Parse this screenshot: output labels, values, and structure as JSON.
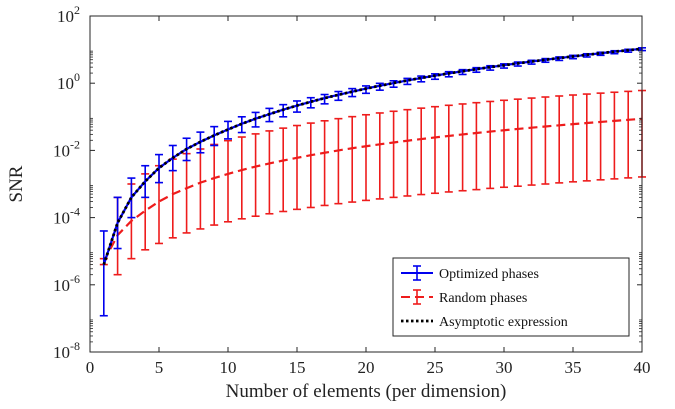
{
  "chart_data": {
    "type": "line",
    "xlabel": "Number of elements (per dimension)",
    "ylabel": "SNR",
    "xlim": [
      0,
      40
    ],
    "ylim_exponent": [
      -8,
      2
    ],
    "yscale": "log",
    "x_ticks": [
      0,
      5,
      10,
      15,
      20,
      25,
      30,
      35,
      40
    ],
    "y_tick_exponents": [
      -8,
      -6,
      -4,
      -2,
      0,
      2
    ],
    "grid": false,
    "legend_position": "bottom-right",
    "x": [
      1,
      2,
      3,
      4,
      5,
      6,
      7,
      8,
      9,
      10,
      11,
      12,
      13,
      14,
      15,
      16,
      17,
      18,
      19,
      20,
      21,
      22,
      23,
      24,
      25,
      26,
      27,
      28,
      29,
      30,
      31,
      32,
      33,
      34,
      35,
      36,
      37,
      38,
      39,
      40
    ],
    "series": [
      {
        "name": "Optimized phases",
        "style": "solid",
        "color": "#0000ee",
        "errorbars": true,
        "values": [
          4e-06,
          7e-05,
          0.0004,
          0.0012,
          0.003,
          0.006,
          0.011,
          0.018,
          0.028,
          0.042,
          0.062,
          0.088,
          0.12,
          0.163,
          0.216,
          0.28,
          0.36,
          0.45,
          0.56,
          0.69,
          0.84,
          1.01,
          1.21,
          1.43,
          1.68,
          1.96,
          2.27,
          2.62,
          3.01,
          3.43,
          3.9,
          4.42,
          4.98,
          5.6,
          6.27,
          7.0,
          7.8,
          8.67,
          9.6,
          10.6
        ],
        "lower": [
          1.2e-07,
          1.2e-05,
          0.0001,
          0.0004,
          0.0011,
          0.0025,
          0.005,
          0.0085,
          0.014,
          0.022,
          0.034,
          0.05,
          0.072,
          0.1,
          0.138,
          0.185,
          0.243,
          0.31,
          0.4,
          0.5,
          0.62,
          0.76,
          0.92,
          1.1,
          1.31,
          1.55,
          1.82,
          2.12,
          2.45,
          2.82,
          3.24,
          3.7,
          4.2,
          4.76,
          5.37,
          6.03,
          6.76,
          7.55,
          8.4,
          9.35
        ],
        "upper": [
          4e-05,
          0.0004,
          0.0015,
          0.0035,
          0.0075,
          0.014,
          0.023,
          0.035,
          0.051,
          0.073,
          0.1,
          0.135,
          0.178,
          0.23,
          0.296,
          0.37,
          0.46,
          0.565,
          0.69,
          0.83,
          0.99,
          1.18,
          1.39,
          1.63,
          1.9,
          2.2,
          2.53,
          2.9,
          3.31,
          3.76,
          4.26,
          4.8,
          5.4,
          6.05,
          6.75,
          7.52,
          8.35,
          9.25,
          10.2,
          11.3
        ]
      },
      {
        "name": "Random phases",
        "style": "dashed",
        "color": "#ee1c1c",
        "errorbars": true,
        "values": [
          5e-06,
          3e-05,
          8e-05,
          0.00016,
          0.0003,
          0.0005,
          0.00075,
          0.0011,
          0.0015,
          0.002,
          0.0026,
          0.0033,
          0.0041,
          0.005,
          0.006,
          0.0072,
          0.0085,
          0.01,
          0.0116,
          0.0133,
          0.0152,
          0.0172,
          0.0194,
          0.0218,
          0.0243,
          0.027,
          0.0299,
          0.033,
          0.0363,
          0.0398,
          0.0435,
          0.0474,
          0.0515,
          0.0559,
          0.0605,
          0.0653,
          0.0704,
          0.0757,
          0.0812,
          0.087
        ],
        "lower": [
          4e-06,
          2e-06,
          6e-06,
          1.1e-05,
          1.7e-05,
          2.5e-05,
          3.5e-05,
          4.6e-05,
          6e-05,
          7.5e-05,
          9.2e-05,
          0.00011,
          0.00013,
          0.000152,
          0.000176,
          0.0002,
          0.00023,
          0.00026,
          0.00029,
          0.000325,
          0.00036,
          0.0004,
          0.00044,
          0.000485,
          0.00053,
          0.00058,
          0.00063,
          0.00068,
          0.00074,
          0.0008,
          0.00086,
          0.00093,
          0.001,
          0.00108,
          0.00116,
          0.00124,
          0.00133,
          0.00142,
          0.00152,
          0.00162
        ],
        "upper": [
          6e-06,
          0.0004,
          0.001,
          0.002,
          0.0035,
          0.0055,
          0.008,
          0.011,
          0.015,
          0.0195,
          0.025,
          0.031,
          0.038,
          0.046,
          0.055,
          0.065,
          0.076,
          0.088,
          0.101,
          0.115,
          0.13,
          0.146,
          0.163,
          0.181,
          0.2,
          0.22,
          0.241,
          0.263,
          0.286,
          0.31,
          0.335,
          0.361,
          0.388,
          0.416,
          0.445,
          0.475,
          0.506,
          0.538,
          0.571,
          0.605
        ]
      },
      {
        "name": "Asymptotic expression",
        "style": "dotted",
        "color": "#000000",
        "errorbars": false,
        "values": [
          4e-06,
          7e-05,
          0.0004,
          0.0012,
          0.003,
          0.006,
          0.011,
          0.018,
          0.028,
          0.042,
          0.062,
          0.088,
          0.12,
          0.163,
          0.216,
          0.28,
          0.36,
          0.45,
          0.56,
          0.69,
          0.84,
          1.01,
          1.21,
          1.43,
          1.68,
          1.96,
          2.27,
          2.62,
          3.01,
          3.43,
          3.9,
          4.42,
          4.98,
          5.6,
          6.27,
          7.0,
          7.8,
          8.67,
          9.6,
          10.6
        ]
      }
    ]
  }
}
